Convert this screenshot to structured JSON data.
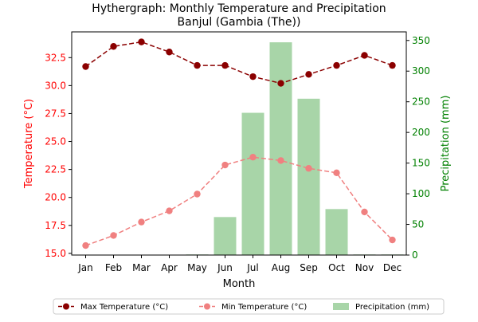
{
  "chart_data": {
    "type": "line+bar",
    "title": "Hythergraph: Monthly Temperature and Precipitation",
    "subtitle": "Banjul (Gambia (The))",
    "categories": [
      "Jan",
      "Feb",
      "Mar",
      "Apr",
      "May",
      "Jun",
      "Jul",
      "Aug",
      "Sep",
      "Oct",
      "Nov",
      "Dec"
    ],
    "xlabel": "Month",
    "ylabel_left": "Temperature (°C)",
    "ylabel_right": "Precipitation (mm)",
    "ylim_left": [
      14.85,
      34.8
    ],
    "ylim_right": [
      0,
      364
    ],
    "yticks_left": [
      "15.0",
      "17.5",
      "20.0",
      "22.5",
      "25.0",
      "27.5",
      "30.0",
      "32.5"
    ],
    "yticks_right": [
      "0",
      "50",
      "100",
      "150",
      "200",
      "250",
      "300",
      "350"
    ],
    "grid": false,
    "legend_position": "bottom",
    "series": [
      {
        "name": "Max Temperature (°C)",
        "type": "line",
        "axis": "left",
        "color": "#8b0000",
        "style": "dashed",
        "marker": "circle",
        "values": [
          31.7,
          33.5,
          33.9,
          33.0,
          31.8,
          31.8,
          30.8,
          30.2,
          31.0,
          31.8,
          32.7,
          31.8
        ]
      },
      {
        "name": "Min Temperature (°C)",
        "type": "line",
        "axis": "left",
        "color": "#f08080",
        "style": "dashed",
        "marker": "circle",
        "values": [
          15.7,
          16.6,
          17.8,
          18.8,
          20.3,
          22.9,
          23.6,
          23.3,
          22.6,
          22.2,
          18.7,
          16.2
        ]
      },
      {
        "name": "Precipitation (mm)",
        "type": "bar",
        "axis": "right",
        "color": "#a8d5a8",
        "values": [
          0,
          0,
          0,
          0,
          1,
          62,
          232,
          347,
          255,
          75,
          1,
          1
        ]
      }
    ]
  },
  "colors": {
    "left_axis": "#ff0000",
    "right_axis": "#008000",
    "text": "#000000"
  }
}
